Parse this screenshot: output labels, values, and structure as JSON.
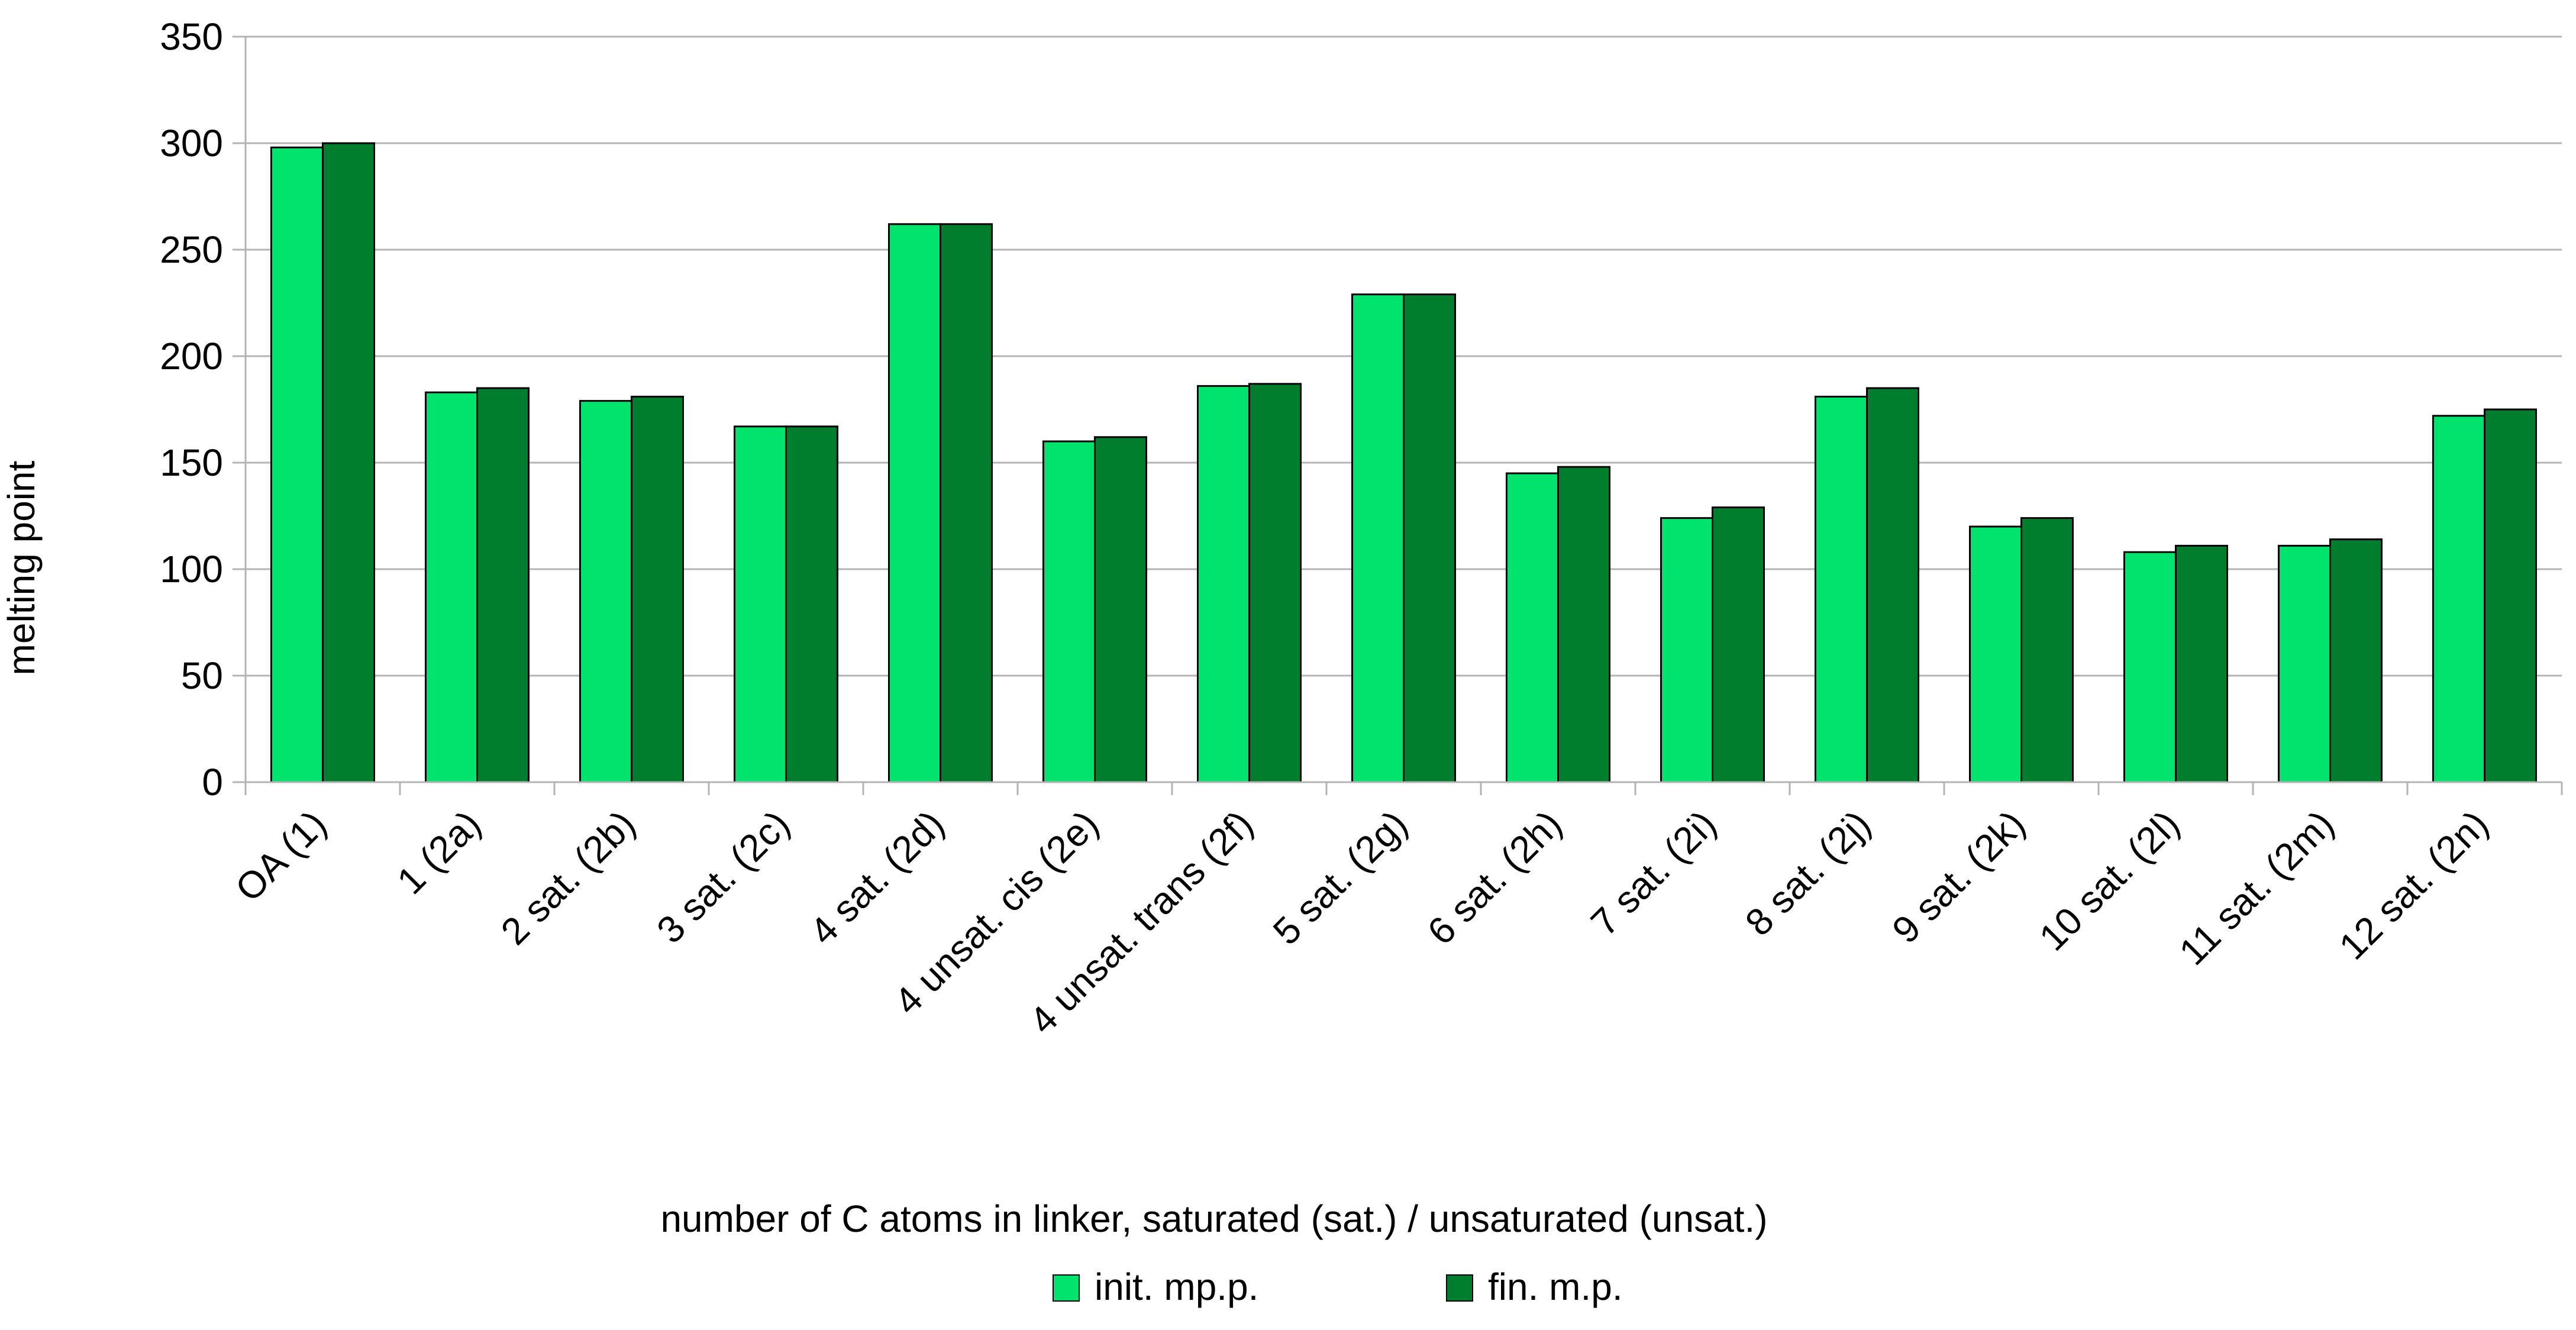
{
  "chart_data": {
    "type": "bar",
    "title": "",
    "xlabel": "number of C atoms in linker, saturated (sat.) / unsaturated (unsat.)",
    "ylabel": "melting point",
    "ylim": [
      0,
      350
    ],
    "yticks": [
      0,
      50,
      100,
      150,
      200,
      250,
      300,
      350
    ],
    "grid": "horizontal",
    "legend_position": "bottom",
    "categories": [
      "OA (1)",
      "1 (2a)",
      "2 sat. (2b)",
      "3 sat. (2c)",
      "4 sat. (2d)",
      "4 unsat. cis (2e)",
      "4 unsat. trans (2f)",
      "5 sat. (2g)",
      "6 sat. (2h)",
      "7 sat. (2i)",
      "8 sat. (2j)",
      "9 sat. (2k)",
      "10 sat. (2l)",
      "11 sat. (2m)",
      "12 sat. (2n)"
    ],
    "series": [
      {
        "name": "init. mp.p.",
        "color": "#00e36c",
        "values": [
          298,
          183,
          179,
          167,
          262,
          160,
          186,
          229,
          145,
          124,
          181,
          120,
          108,
          111,
          172
        ]
      },
      {
        "name": "fin. m.p.",
        "color": "#007e2d",
        "values": [
          300,
          185,
          181,
          167,
          262,
          162,
          187,
          229,
          148,
          129,
          185,
          124,
          111,
          114,
          175
        ]
      }
    ]
  }
}
